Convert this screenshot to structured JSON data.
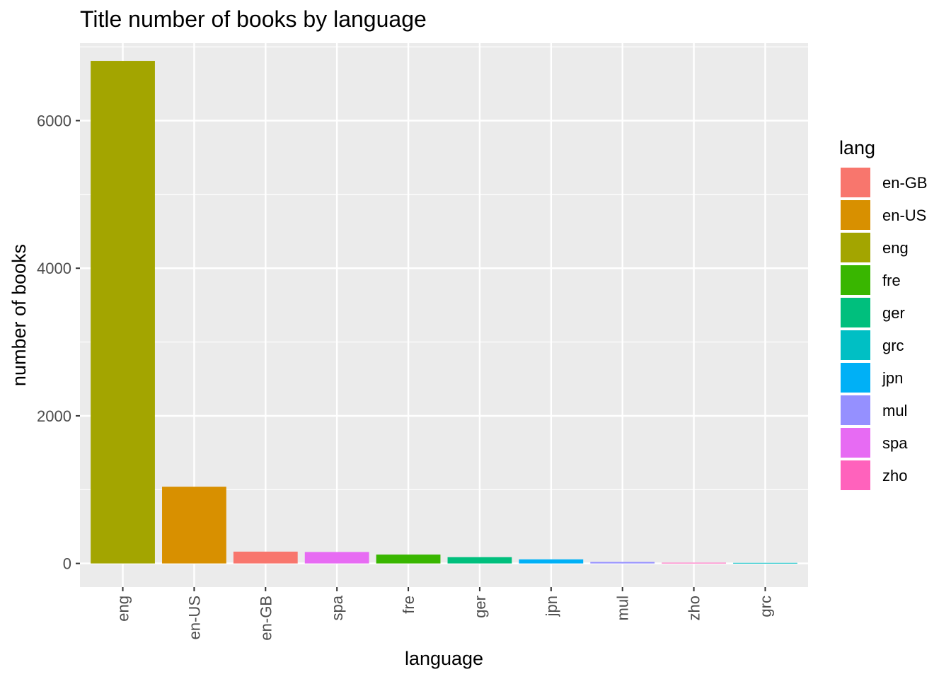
{
  "chart_data": {
    "type": "bar",
    "title": "Title number of books by language",
    "xlabel": "language",
    "ylabel": "number of books",
    "categories": [
      "eng",
      "en-US",
      "en-GB",
      "spa",
      "fre",
      "ger",
      "jpn",
      "mul",
      "zho",
      "grc"
    ],
    "values": [
      6810,
      1040,
      160,
      155,
      120,
      85,
      55,
      20,
      10,
      8
    ],
    "bar_colors": [
      "#A3A500",
      "#D89000",
      "#F8766D",
      "#E76BF3",
      "#39B600",
      "#00BF7D",
      "#00B0F6",
      "#9590FF",
      "#FF62BC",
      "#00BFC4"
    ],
    "ylim": [
      -320,
      7050
    ],
    "y_ticks": [
      0,
      2000,
      4000,
      6000
    ],
    "y_tick_labels": [
      "0",
      "2000",
      "4000",
      "6000"
    ],
    "grid": true,
    "panel_background": "#EBEBEB",
    "grid_color": "#FFFFFF",
    "legend": {
      "title": "lang",
      "position": "right",
      "entries": [
        {
          "label": "en-GB",
          "color": "#F8766D"
        },
        {
          "label": "en-US",
          "color": "#D89000"
        },
        {
          "label": "eng",
          "color": "#A3A500"
        },
        {
          "label": "fre",
          "color": "#39B600"
        },
        {
          "label": "ger",
          "color": "#00BF7D"
        },
        {
          "label": "grc",
          "color": "#00BFC4"
        },
        {
          "label": "jpn",
          "color": "#00B0F6"
        },
        {
          "label": "mul",
          "color": "#9590FF"
        },
        {
          "label": "spa",
          "color": "#E76BF3"
        },
        {
          "label": "zho",
          "color": "#FF62BC"
        }
      ]
    }
  }
}
